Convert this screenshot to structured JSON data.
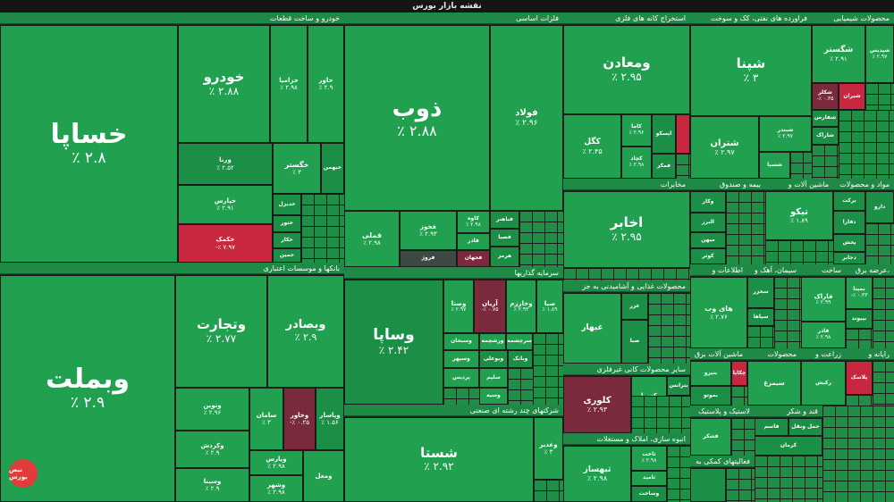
{
  "header": {
    "title": "نقشه بازار بورس"
  },
  "sections": [
    {
      "title": "خودرو و ساخت قطعات"
    },
    {
      "title": "فلزات اساسی"
    },
    {
      "title": "استخراج کانه های فلزی"
    },
    {
      "title": "فراورده های نفتی، کک و سوخت"
    },
    {
      "title": "محصولات شیمیایی"
    },
    {
      "title": "بانکها و موسسات اعتباری"
    },
    {
      "title": "سرمایه گذاریها"
    },
    {
      "title": "شرکتهای چند رشته ای صنعتی"
    },
    {
      "title": "مخابرات"
    },
    {
      "title": "بیمه و صندوق"
    },
    {
      "title": "ماشین آلات و"
    },
    {
      "title": "مواد و محصولات"
    },
    {
      "title": "اطلاعات و"
    },
    {
      "title": "سیمان، آهک و"
    },
    {
      "title": "ساخت"
    },
    {
      "title": "عرضه برق،"
    },
    {
      "title": "محصولات غذایی و آشامیدنی به جز"
    },
    {
      "title": "ماشین آلات برق"
    },
    {
      "title": "محصولات"
    },
    {
      "title": "زراعت و"
    },
    {
      "title": "رایانه و"
    },
    {
      "title": "سایر محصولات کانی غیرفلزی"
    },
    {
      "title": "لاستیک و پلاستیک"
    },
    {
      "title": "قند و شکر"
    },
    {
      "title": "انبوه سازی، املاک و مستغلات"
    },
    {
      "title": "فعالیتهای کمکی به"
    }
  ],
  "tiles": [
    {
      "name": "خساپا",
      "pct": "٪ ۲.۸"
    },
    {
      "name": "خودرو",
      "pct": "٪ ۲.۸۸"
    },
    {
      "name": "خزامیا",
      "pct": "٪ ۲.۹۸"
    },
    {
      "name": "خاور",
      "pct": "٪ ۲.۹"
    },
    {
      "name": "ورنا",
      "pct": "٪ ۲.۵۲"
    },
    {
      "name": "خگستر",
      "pct": "٪ ۳"
    },
    {
      "name": "خبهمن",
      "pct": ""
    },
    {
      "name": "خپارس",
      "pct": "٪ ۲.۹۱"
    },
    {
      "name": "خدیزل",
      "pct": ""
    },
    {
      "name": "ختور",
      "pct": ""
    },
    {
      "name": "خکار",
      "pct": ""
    },
    {
      "name": "خمین",
      "pct": ""
    },
    {
      "name": "خکمک",
      "pct": "-٪ ۷.۹۷"
    },
    {
      "name": "ذوب",
      "pct": "٪ ۲.۸۸"
    },
    {
      "name": "فولاد",
      "pct": "٪ ۲.۹۶"
    },
    {
      "name": "فملی",
      "pct": "٪ ۲.۹۸"
    },
    {
      "name": "فخوز",
      "pct": "٪ ۲.۹۳"
    },
    {
      "name": "کاوه",
      "pct": "٪ ۲.۹۸"
    },
    {
      "name": "فاذر",
      "pct": ""
    },
    {
      "name": "فروژ",
      "pct": ""
    },
    {
      "name": "فجهان",
      "pct": ""
    },
    {
      "name": "فباهنر",
      "pct": ""
    },
    {
      "name": "فصبا",
      "pct": ""
    },
    {
      "name": "هرمز",
      "pct": ""
    },
    {
      "name": "ومعادن",
      "pct": "٪ ۲.۹۵"
    },
    {
      "name": "کگل",
      "pct": "٪ ۲.۴۵"
    },
    {
      "name": "کاما",
      "pct": "٪ ۲.۹۶"
    },
    {
      "name": "کچاد",
      "pct": "٪ ۲.۹۸"
    },
    {
      "name": "اپسکو",
      "pct": ""
    },
    {
      "name": "فمکز",
      "pct": ""
    },
    {
      "name": "شپنا",
      "pct": "٪ ۳"
    },
    {
      "name": "شتران",
      "pct": "٪ ۲.۹۷"
    },
    {
      "name": "شبندر",
      "pct": "٪ ۲.۹۷"
    },
    {
      "name": "شسپا",
      "pct": ""
    },
    {
      "name": "شگستر",
      "pct": "٪ ۲.۹۱"
    },
    {
      "name": "شپدیس",
      "pct": ""
    },
    {
      "name": "شکلر",
      "pct": "-٪ ۰.۳۵"
    },
    {
      "name": "شیران",
      "pct": ""
    },
    {
      "name": "شفارس",
      "pct": ""
    },
    {
      "name": "شاراک",
      "pct": ""
    },
    {
      "name": "وبملت",
      "pct": "٪ ۲.۹"
    },
    {
      "name": "وتجارت",
      "pct": "٪ ۲.۷۷"
    },
    {
      "name": "وبصادر",
      "pct": "٪ ۲.۹"
    },
    {
      "name": "ونوین",
      "pct": "٪ ۲.۹۶"
    },
    {
      "name": "سامان",
      "pct": "٪ ۳"
    },
    {
      "name": "وخاور",
      "pct": "-٪ ۰.۲۵"
    },
    {
      "name": "وپاسار",
      "pct": "٪ ۱.۵۶"
    },
    {
      "name": "وکردش",
      "pct": "٪ ۲.۹"
    },
    {
      "name": "وپارس",
      "pct": "٪ ۲.۹۸"
    },
    {
      "name": "وسینا",
      "pct": "٪ ۲.۹"
    },
    {
      "name": "وشهر",
      "pct": "٪ ۲.۹۸"
    },
    {
      "name": "ومعل",
      "pct": ""
    },
    {
      "name": "وساپا",
      "pct": "٪ ۲.۴۲"
    },
    {
      "name": "وصنا",
      "pct": "٪ ۲.۹۷"
    },
    {
      "name": "آریان",
      "pct": "-٪ ۰.۷۵"
    },
    {
      "name": "وخارزم",
      "pct": "٪ ۲.۹۳"
    },
    {
      "name": "صبا",
      "pct": "٪ ۱.۸۹"
    },
    {
      "name": "وسبحان",
      "pct": ""
    },
    {
      "name": "ورشچمه",
      "pct": ""
    },
    {
      "name": "سرچشمه",
      "pct": ""
    },
    {
      "name": "وسپهر",
      "pct": ""
    },
    {
      "name": "پردیس",
      "pct": ""
    },
    {
      "name": "سلیم",
      "pct": ""
    },
    {
      "name": "وسیه",
      "pct": ""
    },
    {
      "name": "وبوعلی",
      "pct": ""
    },
    {
      "name": "وبانک",
      "pct": ""
    },
    {
      "name": "شستا",
      "pct": "٪ ۲.۹۲"
    },
    {
      "name": "وغدیر",
      "pct": "٪ ۳"
    },
    {
      "name": "اخابر",
      "pct": "٪ ۲.۹۵"
    },
    {
      "name": "وکار",
      "pct": ""
    },
    {
      "name": "البرز",
      "pct": ""
    },
    {
      "name": "میهن",
      "pct": ""
    },
    {
      "name": "کوثر",
      "pct": ""
    },
    {
      "name": "تیکو",
      "pct": "٪ ۱.۸۹"
    },
    {
      "name": "خاور",
      "pct": ""
    },
    {
      "name": "برکت",
      "pct": ""
    },
    {
      "name": "دارو",
      "pct": ""
    },
    {
      "name": "دفارا",
      "pct": ""
    },
    {
      "name": "پخش",
      "pct": ""
    },
    {
      "name": "دجابر",
      "pct": ""
    },
    {
      "name": "سخزر",
      "pct": ""
    },
    {
      "name": "های وب",
      "pct": "٪ ۲.۷۶"
    },
    {
      "name": "سپاها",
      "pct": ""
    },
    {
      "name": "فاراک",
      "pct": "٪ ۲.۹۹"
    },
    {
      "name": "قاذر",
      "pct": "٪ ۲.۹۸"
    },
    {
      "name": "بمپنا",
      "pct": "-٪ ۰.۳۳"
    },
    {
      "name": "بپیوند",
      "pct": ""
    },
    {
      "name": "غنوش",
      "pct": ""
    },
    {
      "name": "غزر",
      "pct": "٪ ۳"
    },
    {
      "name": "غبهار",
      "pct": ""
    },
    {
      "name": "صبا",
      "pct": "٪ ۱.۸۹"
    },
    {
      "name": "کرازی",
      "pct": "-٪ ۰.۳"
    },
    {
      "name": "کلوری",
      "pct": "٪ ۲.۹۳"
    },
    {
      "name": "کسرا",
      "pct": ""
    },
    {
      "name": "بترانس",
      "pct": "٪ ۲.۹۳"
    },
    {
      "name": "بنیرو",
      "pct": ""
    },
    {
      "name": "بموتو",
      "pct": ""
    },
    {
      "name": "چکاپا",
      "pct": "٪ ۲.۸۴"
    },
    {
      "name": "سیمرغ",
      "pct": ""
    },
    {
      "name": "رکیش",
      "pct": ""
    },
    {
      "name": "پلاسک",
      "pct": "٪ ۱.۹"
    },
    {
      "name": "قشکر",
      "pct": ""
    },
    {
      "name": "قاسم",
      "pct": ""
    },
    {
      "name": "حمل ونقل",
      "pct": ""
    },
    {
      "name": "کرمان",
      "pct": "٪ ۲.۹۴"
    },
    {
      "name": "ثبهساز",
      "pct": "٪ ۲.۹۸"
    },
    {
      "name": "ثاخت",
      "pct": "٪ ۲.۹۸"
    },
    {
      "name": "ثامید",
      "pct": ""
    },
    {
      "name": "وساخت",
      "pct": ""
    },
    {
      "name": "رابرس",
      "pct": ""
    }
  ],
  "watermark": "nabzebourse.com",
  "logo": "نبض بورس"
}
